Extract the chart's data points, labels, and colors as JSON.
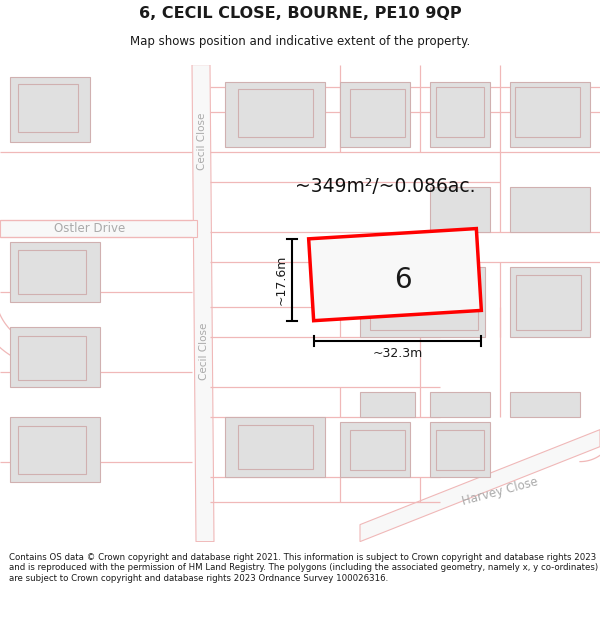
{
  "title": "6, CECIL CLOSE, BOURNE, PE10 9QP",
  "subtitle": "Map shows position and indicative extent of the property.",
  "footer": "Contains OS data © Crown copyright and database right 2021. This information is subject to Crown copyright and database rights 2023 and is reproduced with the permission of HM Land Registry. The polygons (including the associated geometry, namely x, y co-ordinates) are subject to Crown copyright and database rights 2023 Ordnance Survey 100026316.",
  "area_text": "~349m²/~0.086ac.",
  "width_label": "~32.3m",
  "height_label": "~17.6m",
  "plot_number": "6",
  "map_bg": "#f8f8f8",
  "road_line_color": "#f0b8b8",
  "building_fill": "#e0e0e0",
  "building_stroke": "#d0b0b0",
  "plot_stroke": "#ff0000",
  "plot_fill": "#f8f8f8",
  "dim_line_color": "#000000",
  "street_label_color": "#aaaaaa",
  "text_color": "#1a1a1a",
  "area_text_color": "#111111",
  "figsize": [
    6.0,
    6.25
  ],
  "dpi": 100
}
